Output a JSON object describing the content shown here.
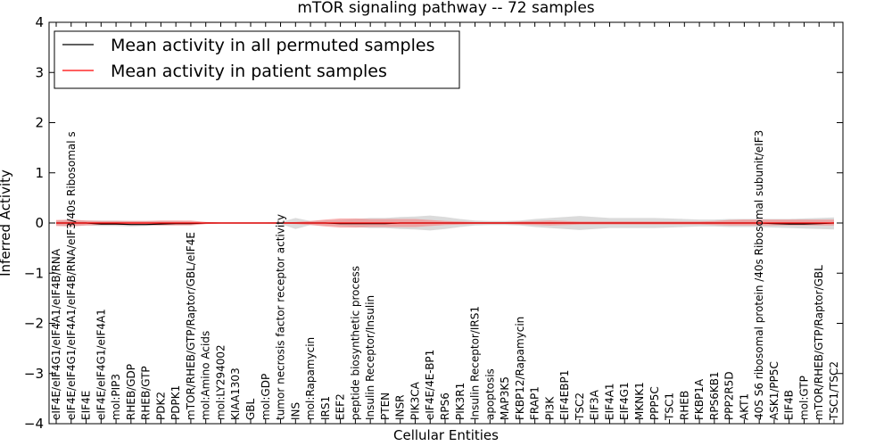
{
  "chart_data": {
    "type": "line",
    "title": "mTOR signaling pathway -- 72 samples",
    "xlabel": "Cellular Entities",
    "ylabel": "Inferred Activity",
    "ylim": [
      -4,
      4
    ],
    "yticks": [
      -4,
      -3,
      -2,
      -1,
      0,
      1,
      2,
      3,
      4
    ],
    "ytick_labels": [
      "−4",
      "−3",
      "−2",
      "−1",
      "0",
      "1",
      "2",
      "3",
      "4"
    ],
    "grid": false,
    "legend_position": "top-left",
    "categories": [
      "eIF4E/eIF4G1/eIF4A1/eIF4B/RNA",
      "eIF4E/eIF4G1/eIF4A1/eIF4B/RNA/eIF3/40s Ribosomal s",
      "EIF4E",
      "eIF4E/eIF4G1/eIF4A1",
      "mol:PIP3",
      "RHEB/GDP",
      "RHEB/GTP",
      "PDK2",
      "PDPK1",
      "mTOR/RHEB/GTP/Raptor/GBL/eIF4E",
      "mol:Amino Acids",
      "mol:LY294002",
      "KIAA1303",
      "GBL",
      "mol:GDP",
      "tumor necrosis factor receptor activity",
      "INS",
      "mol:Rapamycin",
      "IRS1",
      "EEF2",
      "peptide biosynthetic process",
      "Insulin Receptor/Insulin",
      "PTEN",
      "INSR",
      "PIK3CA",
      "eIF4E/4E-BP1",
      "RPS6",
      "PIK3R1",
      "Insulin Receptor/IRS1",
      "apoptosis",
      "MAP3K5",
      "FKBP12/Rapamycin",
      "FRAP1",
      "PI3K",
      "EIF4EBP1",
      "TSC2",
      "EIF3A",
      "EIF4A1",
      "EIF4G1",
      "MKNK1",
      "PPP5C",
      "TSC1",
      "RHEB",
      "FKBP1A",
      "RPS6KB1",
      "PPP2R5D",
      "AKT1",
      "40S S6 ribosomal protein /40s Ribosomal subunit/eIF3",
      "ASK1/PP5C",
      "EIF4B",
      "mol:GTP",
      "mTOR/RHEB/GTP/Raptor/GBL",
      "TSC1/TSC2"
    ],
    "series": [
      {
        "name": "Mean activity in all permuted samples",
        "color": "#000000",
        "values": [
          0.0,
          0.0,
          0.0,
          -0.02,
          -0.02,
          -0.03,
          -0.03,
          -0.02,
          -0.01,
          -0.01,
          0.0,
          0.0,
          0.0,
          0.0,
          0.0,
          0.0,
          0.0,
          0.0,
          0.0,
          -0.01,
          -0.01,
          -0.01,
          -0.01,
          0.0,
          0.0,
          0.0,
          0.0,
          0.0,
          0.0,
          0.0,
          0.0,
          0.0,
          0.0,
          0.0,
          0.0,
          0.0,
          0.0,
          0.0,
          0.0,
          0.0,
          0.0,
          0.0,
          0.0,
          0.0,
          0.0,
          0.0,
          0.0,
          0.0,
          -0.01,
          -0.02,
          -0.02,
          -0.01,
          0.0
        ],
        "band_low": [
          -0.05,
          -0.06,
          -0.05,
          -0.06,
          -0.06,
          -0.07,
          -0.06,
          -0.05,
          -0.04,
          -0.03,
          -0.02,
          -0.01,
          -0.01,
          -0.01,
          -0.01,
          -0.02,
          -0.12,
          -0.04,
          -0.05,
          -0.06,
          -0.08,
          -0.1,
          -0.1,
          -0.12,
          -0.13,
          -0.15,
          -0.12,
          -0.08,
          -0.05,
          -0.04,
          -0.04,
          -0.05,
          -0.08,
          -0.1,
          -0.12,
          -0.14,
          -0.12,
          -0.1,
          -0.1,
          -0.1,
          -0.1,
          -0.09,
          -0.08,
          -0.07,
          -0.07,
          -0.08,
          -0.08,
          -0.08,
          -0.09,
          -0.1,
          -0.11,
          -0.12,
          -0.13
        ],
        "band_high": [
          0.05,
          0.06,
          0.05,
          0.05,
          0.05,
          0.04,
          0.04,
          0.04,
          0.04,
          0.03,
          0.02,
          0.01,
          0.01,
          0.01,
          0.01,
          0.02,
          0.1,
          0.04,
          0.05,
          0.06,
          0.08,
          0.1,
          0.1,
          0.12,
          0.13,
          0.15,
          0.12,
          0.08,
          0.05,
          0.04,
          0.04,
          0.05,
          0.08,
          0.1,
          0.12,
          0.14,
          0.12,
          0.1,
          0.1,
          0.1,
          0.1,
          0.09,
          0.08,
          0.07,
          0.07,
          0.08,
          0.08,
          0.08,
          0.08,
          0.08,
          0.09,
          0.1,
          0.11
        ]
      },
      {
        "name": "Mean activity in patient samples",
        "color": "#ff0000",
        "band_color": "#f28080",
        "values": [
          0.0,
          0.0,
          0.0,
          0.0,
          0.0,
          0.0,
          0.0,
          0.0,
          0.0,
          0.0,
          0.0,
          0.0,
          0.0,
          0.0,
          0.0,
          0.0,
          0.0,
          0.0,
          0.0,
          0.0,
          0.0,
          0.0,
          0.0,
          0.0,
          0.0,
          0.0,
          0.0,
          0.0,
          0.0,
          0.0,
          0.0,
          0.0,
          0.0,
          0.0,
          0.0,
          0.0,
          0.0,
          0.0,
          0.0,
          0.0,
          0.0,
          0.0,
          0.0,
          0.0,
          0.0,
          0.0,
          0.0,
          0.0,
          0.0,
          0.0,
          0.0,
          0.0,
          0.0
        ],
        "band_low": [
          -0.06,
          -0.07,
          -0.05,
          -0.04,
          -0.04,
          -0.04,
          -0.04,
          -0.05,
          -0.05,
          -0.05,
          -0.02,
          -0.01,
          -0.01,
          -0.01,
          -0.01,
          -0.01,
          -0.02,
          -0.04,
          -0.07,
          -0.09,
          -0.09,
          -0.08,
          -0.08,
          -0.08,
          -0.08,
          -0.06,
          -0.04,
          -0.03,
          -0.02,
          -0.02,
          -0.02,
          -0.03,
          -0.04,
          -0.05,
          -0.04,
          -0.03,
          -0.03,
          -0.03,
          -0.03,
          -0.03,
          -0.03,
          -0.03,
          -0.03,
          -0.03,
          -0.04,
          -0.05,
          -0.05,
          -0.05,
          -0.05,
          -0.05,
          -0.05,
          -0.05,
          -0.05
        ],
        "band_high": [
          0.06,
          0.07,
          0.05,
          0.04,
          0.04,
          0.04,
          0.04,
          0.05,
          0.05,
          0.05,
          0.02,
          0.01,
          0.01,
          0.01,
          0.01,
          0.01,
          0.02,
          0.04,
          0.07,
          0.09,
          0.09,
          0.08,
          0.08,
          0.08,
          0.08,
          0.06,
          0.04,
          0.03,
          0.02,
          0.02,
          0.02,
          0.03,
          0.04,
          0.05,
          0.04,
          0.03,
          0.03,
          0.03,
          0.03,
          0.03,
          0.03,
          0.03,
          0.03,
          0.03,
          0.04,
          0.06,
          0.07,
          0.07,
          0.07,
          0.07,
          0.07,
          0.07,
          0.07
        ]
      }
    ]
  }
}
